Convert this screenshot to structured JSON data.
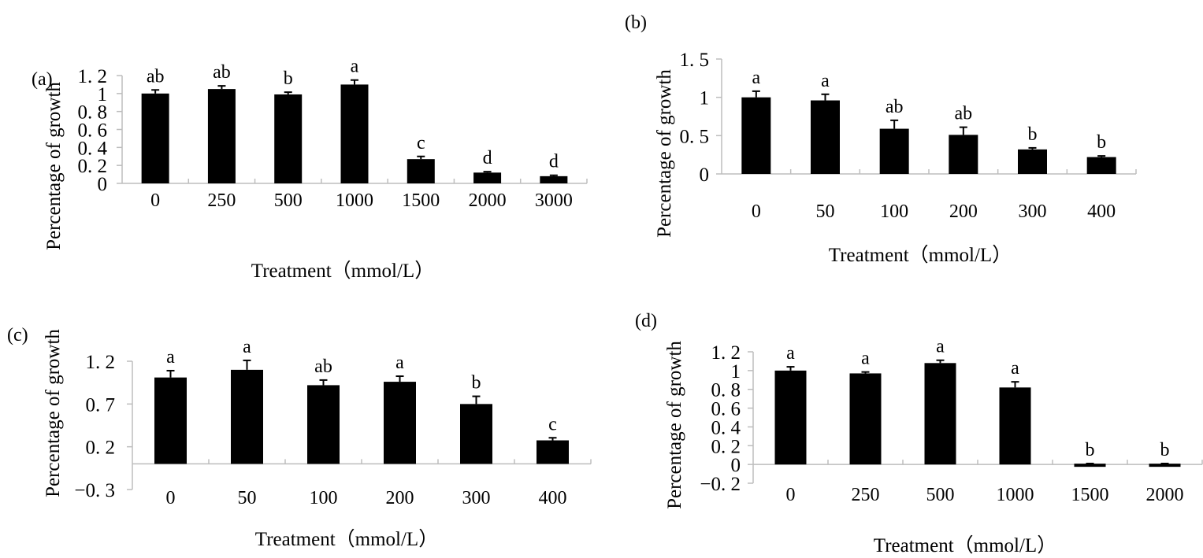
{
  "chart_data": [
    {
      "id": "a",
      "type": "bar",
      "panel_label": "(a)",
      "title": "",
      "xlabel": "Treatment（mmol/L）",
      "ylabel": "Percentage of growth",
      "ylim": [
        0,
        1.2
      ],
      "yticks": [
        0,
        0.2,
        0.4,
        0.6,
        0.8,
        1,
        1.2
      ],
      "ytick_labels": [
        "0",
        "0. 2",
        "0. 4",
        "0. 6",
        "0. 8",
        "1",
        "1. 2"
      ],
      "categories": [
        "0",
        "250",
        "500",
        "1000",
        "1500",
        "2000",
        "3000"
      ],
      "values": [
        1.0,
        1.05,
        0.99,
        1.1,
        0.27,
        0.12,
        0.08
      ],
      "errors": [
        0.04,
        0.035,
        0.025,
        0.05,
        0.03,
        0.01,
        0.01
      ],
      "significance": [
        "ab",
        "ab",
        "b",
        "a",
        "c",
        "d",
        "d"
      ],
      "grid": false,
      "legend": "none"
    },
    {
      "id": "b",
      "type": "bar",
      "panel_label": "(b)",
      "title": "",
      "xlabel": "Treatment（mmol/L）",
      "ylabel": "Percentage of growth",
      "ylim": [
        0,
        1.5
      ],
      "yticks": [
        0,
        0.5,
        1,
        1.5
      ],
      "ytick_labels": [
        "0",
        "0. 5",
        "1",
        "1. 5"
      ],
      "categories": [
        "0",
        "50",
        "100",
        "200",
        "300",
        "400"
      ],
      "values": [
        1.0,
        0.96,
        0.59,
        0.51,
        0.32,
        0.22
      ],
      "errors": [
        0.08,
        0.08,
        0.11,
        0.1,
        0.02,
        0.015
      ],
      "significance": [
        "a",
        "a",
        "ab",
        "ab",
        "b",
        "b"
      ],
      "grid": false,
      "legend": "none"
    },
    {
      "id": "c",
      "type": "bar",
      "panel_label": "(c)",
      "title": "",
      "xlabel": "Treatment（mmol/L）",
      "ylabel": "Percentage of growth",
      "ylim": [
        -0.3,
        1.2
      ],
      "yticks": [
        -0.3,
        0.2,
        0.7,
        1.2
      ],
      "ytick_labels": [
        "−0. 3",
        "0. 2",
        "0. 7",
        "1. 2"
      ],
      "categories": [
        "0",
        "50",
        "100",
        "200",
        "300",
        "400"
      ],
      "values": [
        1.01,
        1.1,
        0.92,
        0.96,
        0.7,
        0.275
      ],
      "errors": [
        0.08,
        0.11,
        0.06,
        0.065,
        0.09,
        0.03
      ],
      "significance": [
        "a",
        "a",
        "ab",
        "a",
        "b",
        "c"
      ],
      "grid": false,
      "legend": "none"
    },
    {
      "id": "d",
      "type": "bar",
      "panel_label": "(d)",
      "title": "",
      "xlabel": "Treatment（mmol/L）",
      "ylabel": "Percentage of growth",
      "ylim": [
        -0.2,
        1.2
      ],
      "yticks": [
        -0.2,
        0,
        0.2,
        0.4,
        0.6,
        0.8,
        1,
        1.2
      ],
      "ytick_labels": [
        "−0. 2",
        "0",
        "0. 2",
        "0. 4",
        "0. 6",
        "0. 8",
        "1",
        "1. 2"
      ],
      "categories": [
        "0",
        "250",
        "500",
        "1000",
        "1500",
        "2000"
      ],
      "values": [
        1.0,
        0.97,
        1.08,
        0.82,
        -0.02,
        -0.02
      ],
      "errors": [
        0.04,
        0.015,
        0.03,
        0.06,
        0.01,
        0.01
      ],
      "significance": [
        "a",
        "a",
        "a",
        "a",
        "b",
        "b"
      ],
      "grid": false,
      "legend": "none"
    }
  ]
}
